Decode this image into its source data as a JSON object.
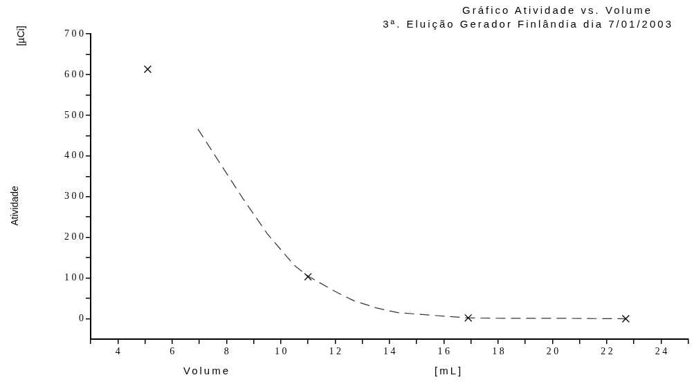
{
  "chart_data": {
    "type": "scatter",
    "title": "Gráfico Atividade vs. Volume",
    "subtitle": "3ª. Eluição Gerador Finlândia dia 7/01/2003",
    "xlabel": "Volume",
    "ylabel": "Atividade",
    "annotations": [
      "[µCi]",
      "[mL]"
    ],
    "xlim": [
      3,
      25
    ],
    "xticks": [
      {
        "value": 3,
        "label": null
      },
      4,
      {
        "value": 5,
        "label": null
      },
      6,
      {
        "value": 7,
        "label": null
      },
      8,
      {
        "value": 9,
        "label": null
      },
      10,
      {
        "value": 11,
        "label": null
      },
      12,
      {
        "value": 13,
        "label": null
      },
      14,
      {
        "value": 15,
        "label": null
      },
      16,
      {
        "value": 17,
        "label": null
      },
      18,
      {
        "value": 19,
        "label": null
      },
      20,
      {
        "value": 21,
        "label": null
      },
      22,
      {
        "value": 23,
        "label": null
      },
      24,
      {
        "value": 25,
        "label": null
      }
    ],
    "ylim": [
      -50,
      700
    ],
    "yticks": [
      0,
      {
        "value": 50,
        "label": null
      },
      100,
      {
        "value": 150,
        "label": null
      },
      200,
      {
        "value": 250,
        "label": null
      },
      300,
      {
        "value": 350,
        "label": null
      },
      400,
      {
        "value": 450,
        "label": null
      },
      500,
      {
        "value": 550,
        "label": null
      },
      600,
      {
        "value": 650,
        "label": null
      },
      700
    ],
    "grid": false,
    "legend": false,
    "series": [
      {
        "color": "#000000",
        "marker": "cross",
        "x": [
          5.1,
          11.0,
          16.9,
          22.7
        ],
        "values": [
          613,
          103,
          2,
          0
        ]
      },
      {
        "type": "line",
        "color": "#333333",
        "marker": "none",
        "line_style": "dashed",
        "x": [
          6.95,
          7.5,
          8.6,
          9.5,
          10.5,
          11.0,
          12.0,
          12.7,
          13.5,
          14.3,
          15.3,
          16.9,
          18.5,
          20.5,
          22.7
        ],
        "values": [
          466,
          409,
          296,
          209,
          131,
          105,
          67,
          44,
          27,
          15,
          10,
          2,
          1,
          1,
          0
        ]
      }
    ]
  }
}
